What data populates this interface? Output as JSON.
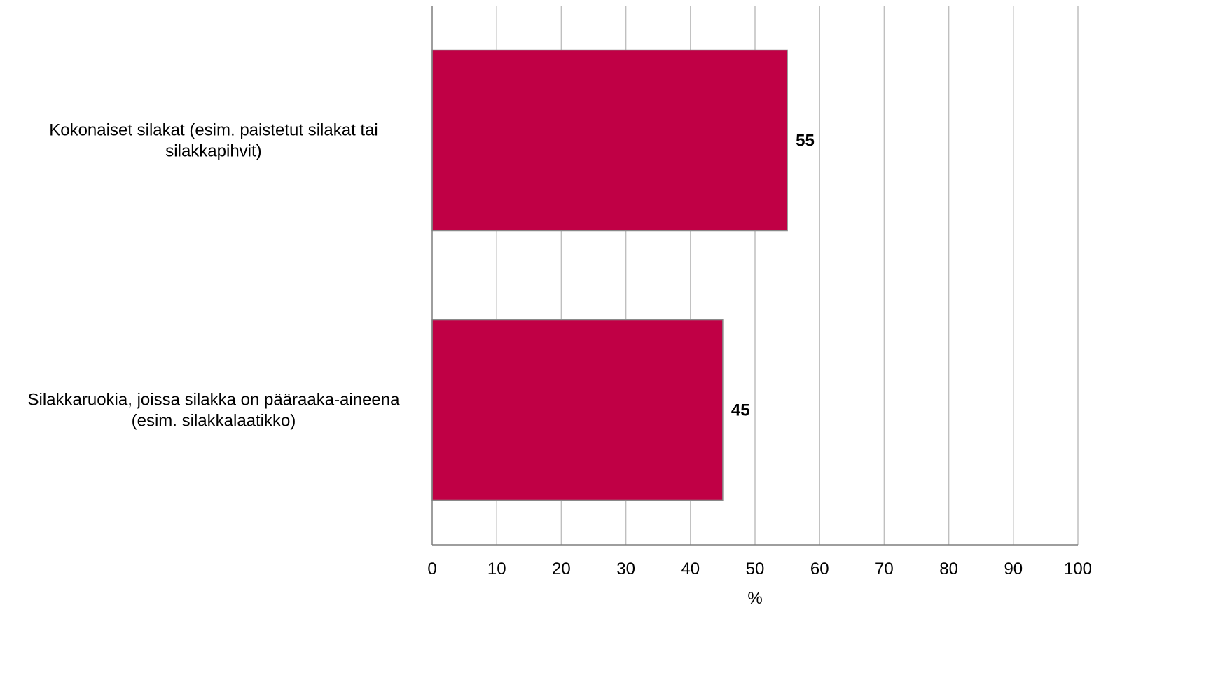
{
  "chart_data": {
    "type": "bar",
    "orientation": "horizontal",
    "categories": [
      [
        "Kokonaiset silakat (esim. paistetut silakat tai",
        "silakkapihvit)"
      ],
      [
        "Silakkaruokia, joissa silakka on pääraaka-aineena",
        "(esim. silakkalaatikko)"
      ]
    ],
    "values": [
      55,
      45
    ],
    "data_labels": [
      "55",
      "45"
    ],
    "xlabel": "%",
    "xlim": [
      0,
      100
    ],
    "xticks": [
      0,
      10,
      20,
      30,
      40,
      50,
      60,
      70,
      80,
      90,
      100
    ],
    "grid": true,
    "colors": {
      "bar": "#c00045",
      "bar_edge": "#8a8a8a",
      "grid": "#bfbfbf",
      "axis": "#7f7f7f"
    }
  }
}
